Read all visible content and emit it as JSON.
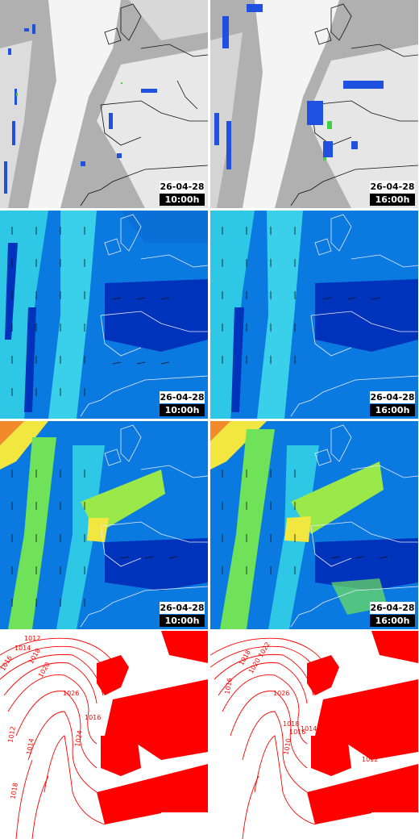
{
  "panels": [
    {
      "kind": "satellite",
      "date": "26-04-28",
      "time": "10:00h"
    },
    {
      "kind": "satellite",
      "date": "26-04-28",
      "time": "16:00h"
    },
    {
      "kind": "wind-low",
      "date": "26-04-28",
      "time": "10:00h"
    },
    {
      "kind": "wind-low",
      "date": "26-04-28",
      "time": "16:00h"
    },
    {
      "kind": "wind-high",
      "date": "26-04-28",
      "time": "10:00h"
    },
    {
      "kind": "wind-high",
      "date": "26-04-28",
      "time": "16:00h"
    },
    {
      "kind": "pressure",
      "isobars": [
        "1012",
        "1014",
        "1016",
        "1018",
        "1020",
        "1026",
        "1024",
        "1016",
        "1014",
        "1012",
        "1018"
      ]
    },
    {
      "kind": "pressure",
      "isobars": [
        "1018",
        "1020",
        "1026",
        "1022",
        "1018",
        "1016",
        "1014",
        "1012",
        "1010",
        "1016"
      ]
    }
  ],
  "colors": {
    "satellite_cloud": "#f2f2f2",
    "satellite_clear": "#a8a8a8",
    "precip_blue": "#1f3fd8",
    "precip_green": "#3ad23a",
    "wind_deep": "#0022aa",
    "wind_mid": "#0a7ae0",
    "wind_light": "#2ec8e6",
    "wind_green": "#6fe25a",
    "wind_yellow": "#f2e640",
    "wind_orange": "#f28a2a",
    "isobar": "#ff0000",
    "land_fill": "#ff0000"
  }
}
